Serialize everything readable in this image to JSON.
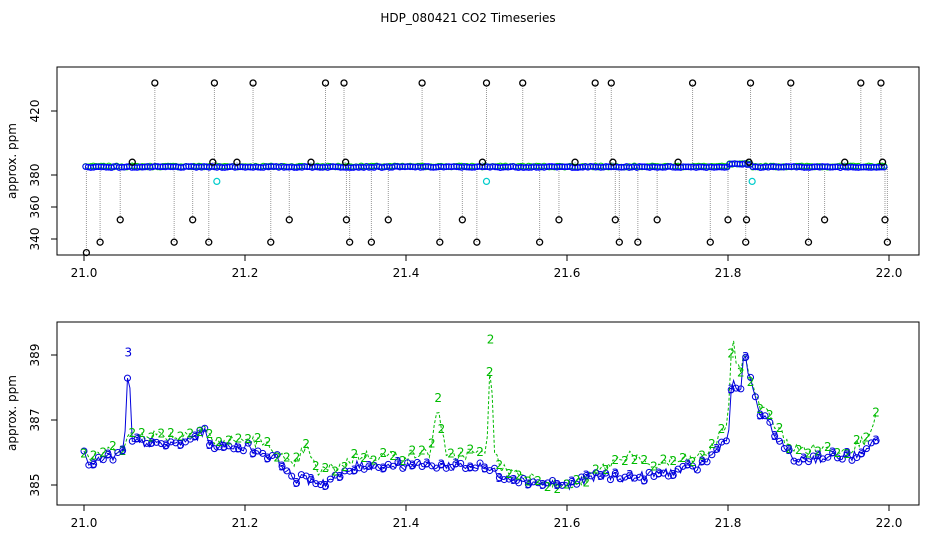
{
  "title": "HDP_080421  CO2 Timeseries",
  "chart_data": [
    {
      "type": "scatter",
      "title": "HDP_080421  CO2 Timeseries",
      "xlabel": "",
      "ylabel": "approx. ppm",
      "xlim": [
        21.0,
        22.0
      ],
      "ylim": [
        332,
        439
      ],
      "xticks": [
        "21.0",
        "21.2",
        "21.4",
        "21.6",
        "21.8",
        "22.0"
      ],
      "yticks": [
        "340",
        "360",
        "380",
        "420"
      ],
      "ytick_values": [
        340,
        360,
        380,
        420
      ],
      "baseline": 385,
      "series": [
        {
          "name": "",
          "color": "#0000ff",
          "marker": "circle",
          "note_key": "main"
        },
        {
          "name": "",
          "color": "#00cc00",
          "marker": "circle"
        },
        {
          "name": "",
          "color": "#00cccc",
          "marker": "circle"
        },
        {
          "name": "",
          "color": "#000000",
          "marker": "circle"
        }
      ],
      "cyan_points": [
        [
          21.165,
          376
        ],
        [
          21.5,
          376
        ],
        [
          21.83,
          376
        ]
      ],
      "outliers": [
        [
          21.003,
          331.5
        ],
        [
          21.02,
          338
        ],
        [
          21.045,
          352
        ],
        [
          21.06,
          388
        ],
        [
          21.088,
          437.5
        ],
        [
          21.112,
          338
        ],
        [
          21.135,
          352
        ],
        [
          21.155,
          338
        ],
        [
          21.162,
          437.5
        ],
        [
          21.16,
          388
        ],
        [
          21.19,
          388
        ],
        [
          21.21,
          437.5
        ],
        [
          21.232,
          338
        ],
        [
          21.255,
          352
        ],
        [
          21.282,
          388
        ],
        [
          21.3,
          437.5
        ],
        [
          21.323,
          437.5
        ],
        [
          21.325,
          388
        ],
        [
          21.326,
          352
        ],
        [
          21.33,
          338
        ],
        [
          21.357,
          338
        ],
        [
          21.378,
          352
        ],
        [
          21.42,
          437.5
        ],
        [
          21.442,
          338
        ],
        [
          21.47,
          352
        ],
        [
          21.488,
          338
        ],
        [
          21.495,
          388
        ],
        [
          21.5,
          437.5
        ],
        [
          21.545,
          437.5
        ],
        [
          21.566,
          338
        ],
        [
          21.59,
          352
        ],
        [
          21.61,
          388
        ],
        [
          21.635,
          437.5
        ],
        [
          21.655,
          437.5
        ],
        [
          21.657,
          388
        ],
        [
          21.66,
          352
        ],
        [
          21.665,
          338
        ],
        [
          21.688,
          338
        ],
        [
          21.712,
          352
        ],
        [
          21.738,
          388
        ],
        [
          21.756,
          437.5
        ],
        [
          21.778,
          338
        ],
        [
          21.8,
          352
        ],
        [
          21.822,
          338
        ],
        [
          21.823,
          352
        ],
        [
          21.826,
          388
        ],
        [
          21.828,
          437.5
        ],
        [
          21.878,
          437.5
        ],
        [
          21.9,
          338
        ],
        [
          21.92,
          352
        ],
        [
          21.945,
          388
        ],
        [
          21.965,
          437.5
        ],
        [
          21.99,
          437.5
        ],
        [
          21.992,
          388
        ],
        [
          21.995,
          352
        ],
        [
          21.998,
          338
        ]
      ]
    },
    {
      "type": "line",
      "title": "",
      "xlabel": "",
      "ylabel": "approx. ppm",
      "xlim": [
        21.0,
        22.0
      ],
      "ylim": [
        384.4,
        390.2
      ],
      "xticks": [
        "21.0",
        "21.2",
        "21.4",
        "21.6",
        "21.8",
        "22.0"
      ],
      "yticks": [
        "385",
        "387",
        "389"
      ],
      "ytick_values": [
        385,
        387,
        389
      ],
      "series": [
        {
          "name": "",
          "color": "#00bb00",
          "marker": "2"
        },
        {
          "name": "",
          "color": "#0000dd",
          "marker": "3"
        }
      ],
      "keypoints_blue": [
        [
          21.0,
          385.9
        ],
        [
          21.01,
          385.6
        ],
        [
          21.025,
          385.8
        ],
        [
          21.04,
          385.9
        ],
        [
          21.05,
          386.0
        ],
        [
          21.055,
          388.9
        ],
        [
          21.06,
          386.3
        ],
        [
          21.08,
          386.3
        ],
        [
          21.1,
          386.2
        ],
        [
          21.12,
          386.3
        ],
        [
          21.15,
          386.6
        ],
        [
          21.16,
          386.2
        ],
        [
          21.2,
          386.2
        ],
        [
          21.22,
          386.0
        ],
        [
          21.24,
          385.8
        ],
        [
          21.26,
          385.2
        ],
        [
          21.3,
          385.1
        ],
        [
          21.32,
          385.3
        ],
        [
          21.34,
          385.6
        ],
        [
          21.4,
          385.6
        ],
        [
          21.45,
          385.6
        ],
        [
          21.48,
          385.6
        ],
        [
          21.5,
          385.5
        ],
        [
          21.52,
          385.3
        ],
        [
          21.55,
          385.1
        ],
        [
          21.6,
          385.0
        ],
        [
          21.63,
          385.2
        ],
        [
          21.65,
          385.3
        ],
        [
          21.68,
          385.2
        ],
        [
          21.72,
          385.4
        ],
        [
          21.76,
          385.5
        ],
        [
          21.78,
          385.9
        ],
        [
          21.8,
          386.5
        ],
        [
          21.805,
          388.2
        ],
        [
          21.815,
          387.8
        ],
        [
          21.82,
          389.0
        ],
        [
          21.83,
          388.0
        ],
        [
          21.84,
          387.2
        ],
        [
          21.86,
          386.5
        ],
        [
          21.88,
          385.8
        ],
        [
          21.9,
          385.8
        ],
        [
          21.95,
          385.9
        ],
        [
          21.97,
          385.9
        ],
        [
          21.985,
          386.5
        ]
      ],
      "keypoints_green": [
        [
          21.0,
          386.0
        ],
        [
          21.01,
          385.8
        ],
        [
          21.025,
          386.0
        ],
        [
          21.05,
          386.2
        ],
        [
          21.055,
          386.5
        ],
        [
          21.06,
          386.5
        ],
        [
          21.08,
          386.6
        ],
        [
          21.1,
          386.5
        ],
        [
          21.12,
          386.5
        ],
        [
          21.15,
          386.8
        ],
        [
          21.16,
          386.3
        ],
        [
          21.2,
          386.4
        ],
        [
          21.22,
          386.3
        ],
        [
          21.24,
          386.0
        ],
        [
          21.26,
          385.5
        ],
        [
          21.275,
          386.2
        ],
        [
          21.29,
          385.4
        ],
        [
          21.32,
          385.6
        ],
        [
          21.34,
          385.9
        ],
        [
          21.4,
          385.9
        ],
        [
          21.43,
          386.0
        ],
        [
          21.44,
          387.5
        ],
        [
          21.45,
          385.8
        ],
        [
          21.48,
          386.0
        ],
        [
          21.5,
          385.9
        ],
        [
          21.505,
          389.3
        ],
        [
          21.51,
          385.9
        ],
        [
          21.52,
          385.5
        ],
        [
          21.55,
          385.3
        ],
        [
          21.6,
          384.9
        ],
        [
          21.63,
          385.3
        ],
        [
          21.65,
          385.6
        ],
        [
          21.68,
          386.0
        ],
        [
          21.7,
          385.5
        ],
        [
          21.72,
          385.7
        ],
        [
          21.76,
          385.8
        ],
        [
          21.78,
          386.1
        ],
        [
          21.8,
          387.0
        ],
        [
          21.805,
          389.5
        ],
        [
          21.815,
          388.3
        ],
        [
          21.82,
          389.2
        ],
        [
          21.83,
          388.0
        ],
        [
          21.84,
          387.5
        ],
        [
          21.86,
          386.8
        ],
        [
          21.88,
          386.1
        ],
        [
          21.9,
          386.1
        ],
        [
          21.95,
          386.1
        ],
        [
          21.97,
          386.4
        ],
        [
          21.985,
          387.2
        ]
      ],
      "spikes": [
        [
          21.44,
          387.5
        ],
        [
          21.505,
          389.3
        ]
      ]
    }
  ]
}
